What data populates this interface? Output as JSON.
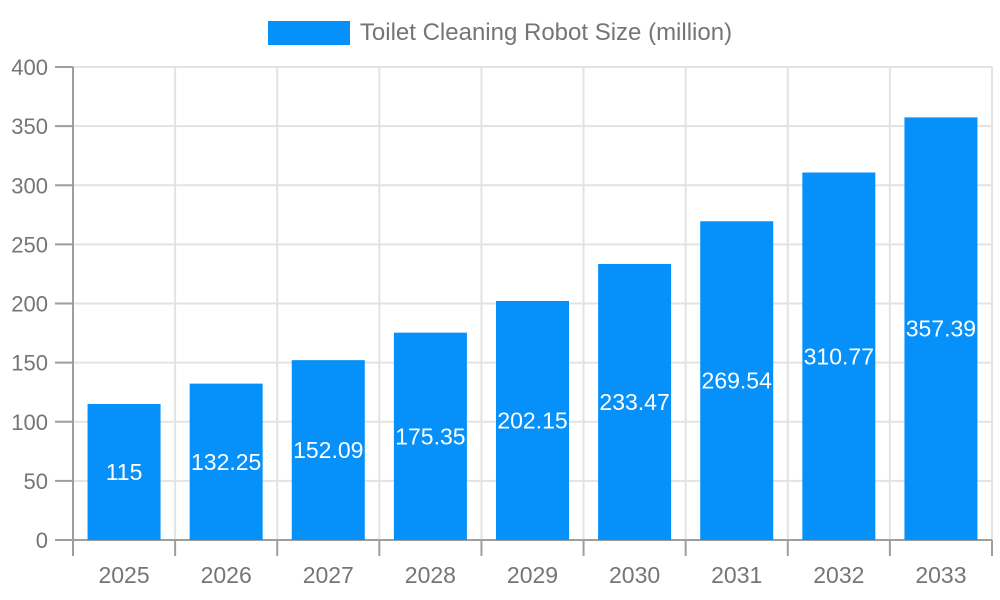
{
  "chart_data": {
    "type": "bar",
    "title": "Toilet Cleaning Robot Size (million)",
    "legend": [
      "Toilet Cleaning Robot Size (million)"
    ],
    "legend_position": "top-center",
    "categories": [
      "2025",
      "2026",
      "2027",
      "2028",
      "2029",
      "2030",
      "2031",
      "2032",
      "2033"
    ],
    "series": [
      {
        "name": "Toilet Cleaning Robot Size (million)",
        "values": [
          115,
          132.25,
          152.09,
          175.35,
          202.15,
          233.47,
          269.54,
          310.77,
          357.39
        ]
      }
    ],
    "value_labels": [
      "115",
      "132.25",
      "152.09",
      "175.35",
      "202.15",
      "233.47",
      "269.54",
      "310.77",
      "357.39"
    ],
    "value_label_position": "inside-center",
    "xlabel": "",
    "ylabel": "",
    "ylim": [
      0,
      400
    ],
    "ytick_step": 50,
    "ytick_labels": [
      "0",
      "50",
      "100",
      "150",
      "200",
      "250",
      "300",
      "350",
      "400"
    ],
    "grid": true
  },
  "colors": {
    "bar": "#0690fa",
    "bar_label": "#ffffff",
    "grid": "#e3e3e3",
    "axis": "#9e9e9e",
    "tick_label": "#757575",
    "legend_text": "#757575",
    "background": "#ffffff"
  }
}
